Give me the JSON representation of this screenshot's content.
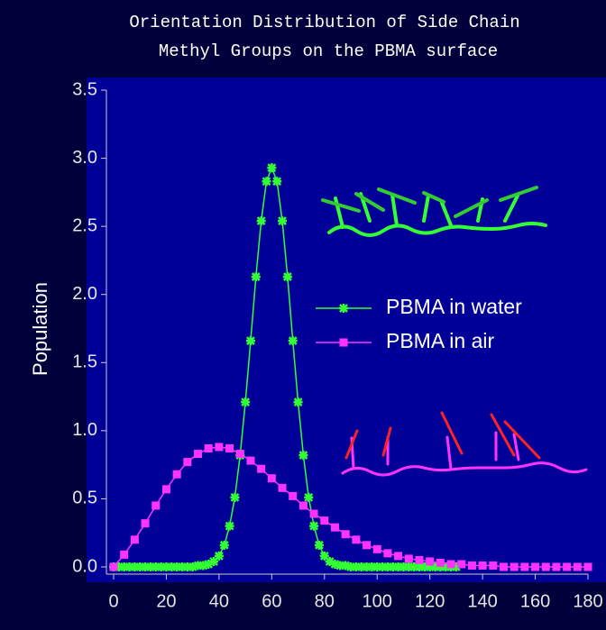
{
  "chart_data": {
    "type": "line",
    "title": "Orientation Distribution of Side Chain",
    "subtitle": "Methyl Groups on the PBMA surface",
    "ylabel": "Population",
    "xlim": [
      0,
      180
    ],
    "xticks": [
      0,
      20,
      40,
      60,
      80,
      100,
      120,
      140,
      160,
      180
    ],
    "ylim": [
      0,
      3.5
    ],
    "yticks": [
      {
        "value": 0,
        "label": "0.0"
      },
      {
        "value": 0.5,
        "label": "0.5"
      },
      {
        "value": 1,
        "label": "1.0"
      },
      {
        "value": 1.5,
        "label": "1.5"
      },
      {
        "value": 2,
        "label": "2.0"
      },
      {
        "value": 2.5,
        "label": "2.5"
      },
      {
        "value": 3,
        "label": "3.0"
      },
      {
        "value": 3.5,
        "label": "3.5"
      }
    ],
    "grid": false,
    "series": [
      {
        "name": "PBMA in water",
        "color": "#33ff33",
        "marker": "star",
        "x": [
          0,
          2,
          4,
          6,
          8,
          10,
          12,
          14,
          16,
          18,
          20,
          22,
          24,
          26,
          28,
          30,
          32,
          34,
          36,
          38,
          40,
          42,
          44,
          46,
          48,
          50,
          52,
          54,
          56,
          58,
          60,
          62,
          64,
          66,
          68,
          70,
          72,
          74,
          76,
          78,
          80,
          82,
          84,
          86,
          88,
          90,
          92,
          94,
          96,
          98,
          100,
          102,
          104,
          106,
          108,
          110,
          112,
          114,
          116,
          118,
          120,
          122,
          124,
          126,
          128,
          130
        ],
        "values": [
          0,
          0,
          0,
          0,
          0,
          0,
          0,
          0,
          0,
          0,
          0,
          0,
          0,
          0,
          0,
          0,
          0.01,
          0.01,
          0.02,
          0.04,
          0.08,
          0.16,
          0.3,
          0.51,
          0.82,
          1.21,
          1.66,
          2.13,
          2.54,
          2.83,
          2.93,
          2.83,
          2.54,
          2.13,
          1.66,
          1.21,
          0.82,
          0.51,
          0.3,
          0.16,
          0.08,
          0.04,
          0.02,
          0.01,
          0.01,
          0,
          0,
          0,
          0,
          0,
          0,
          0,
          0,
          0,
          0,
          0,
          0,
          0,
          0,
          0,
          0,
          0,
          0,
          0,
          0,
          0
        ]
      },
      {
        "name": "PBMA in air",
        "color": "#ff33ff",
        "marker": "square",
        "x": [
          0,
          4,
          8,
          12,
          16,
          20,
          24,
          28,
          32,
          36,
          40,
          44,
          48,
          52,
          56,
          60,
          64,
          68,
          72,
          76,
          80,
          84,
          88,
          92,
          96,
          100,
          104,
          108,
          112,
          116,
          120,
          124,
          128,
          132,
          136,
          140,
          144,
          148,
          152,
          156,
          160,
          164,
          168,
          172,
          176,
          180
        ],
        "values": [
          0,
          0.09,
          0.2,
          0.32,
          0.45,
          0.57,
          0.68,
          0.77,
          0.83,
          0.87,
          0.88,
          0.87,
          0.83,
          0.78,
          0.72,
          0.65,
          0.58,
          0.52,
          0.45,
          0.39,
          0.34,
          0.29,
          0.24,
          0.2,
          0.16,
          0.13,
          0.1,
          0.08,
          0.06,
          0.05,
          0.04,
          0.03,
          0.02,
          0.02,
          0.01,
          0.01,
          0.01,
          0,
          0,
          0,
          0,
          0,
          0,
          0,
          0,
          0
        ]
      }
    ]
  }
}
